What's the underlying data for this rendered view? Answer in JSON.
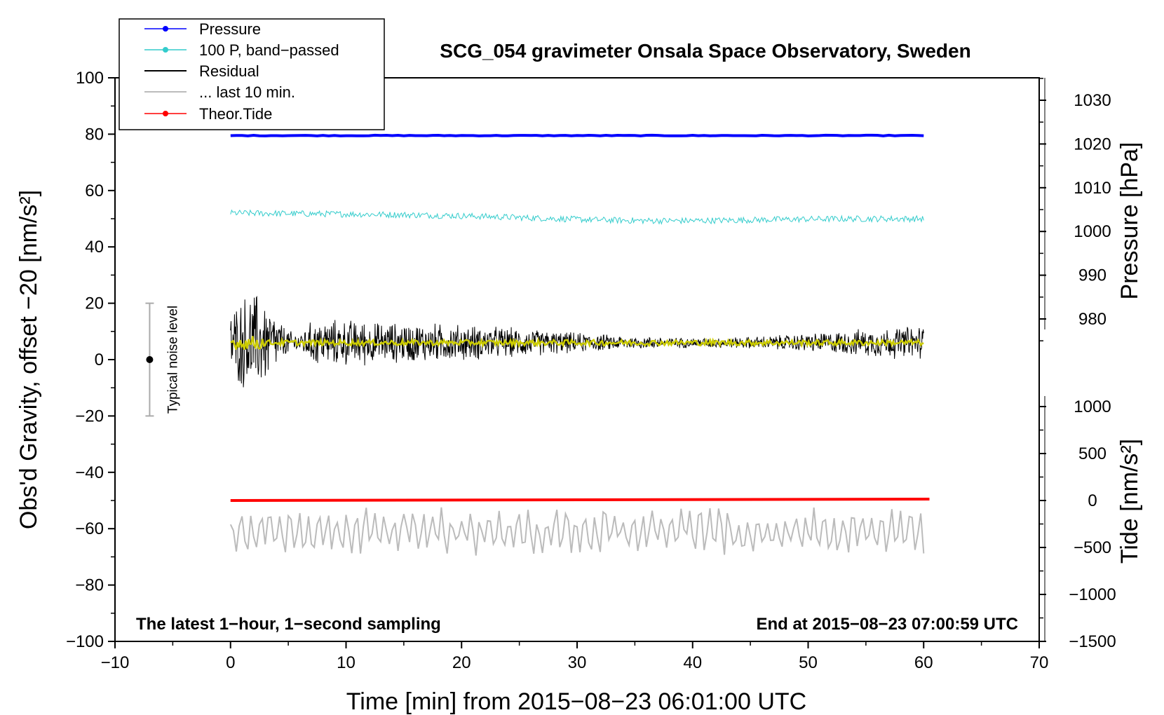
{
  "chart_data": {
    "type": "line",
    "title": "SCG_054 gravimeter Onsala Space Observatory, Sweden",
    "xlabel": "Time [min] from 2015−08−23 06:01:00 UTC",
    "ylabel_left": "Obs'd Gravity, offset −20 [nm/s²]",
    "ylabel_right_pressure": "Pressure [hPa]",
    "ylabel_right_tide": "Tide [nm/s²]",
    "xlim": [
      -10,
      70
    ],
    "ylim": [
      -100,
      100
    ],
    "x_ticks": [
      "−10",
      "0",
      "10",
      "20",
      "30",
      "40",
      "50",
      "60",
      "70"
    ],
    "y_ticks": [
      "−100",
      "−80",
      "−60",
      "−40",
      "−20",
      "0",
      "20",
      "40",
      "60",
      "80",
      "100"
    ],
    "pressure_ticks": [
      "980",
      "990",
      "1000",
      "1010",
      "1020",
      "1030"
    ],
    "tide_ticks": [
      "−1500",
      "−1000",
      "−500",
      "0",
      "500",
      "1000"
    ],
    "legend": [
      "Pressure",
      "100 P, band−passed",
      "Residual",
      "... last 10 min.",
      "Theor.Tide"
    ],
    "annotation_left": "The latest 1−hour, 1−second sampling",
    "annotation_right": "End at 2015−08−23 07:00:59 UTC",
    "noise_label": "Typical noise level",
    "noise_bar": {
      "x": -7,
      "center": 0,
      "low": -20,
      "high": 20
    },
    "series": [
      {
        "name": "Pressure",
        "color": "#0000ff",
        "x_range": [
          0,
          60
        ],
        "level_hpa": 1021.5,
        "y_plot": 79.5
      },
      {
        "name": "100 P, band−passed",
        "color": "#33cccc",
        "x_range": [
          0,
          60
        ],
        "y_start": 52,
        "y_end": 50,
        "y_dip": 48.5
      },
      {
        "name": "Residual",
        "color": "#000000",
        "x_range": [
          0,
          60
        ],
        "y_mean": 6,
        "amplitude_max": 20
      },
      {
        "name": "Residual smoothed",
        "color": "#cccc00",
        "x_range": [
          0,
          60
        ],
        "y_mean": 6
      },
      {
        "name": "... last 10 min.",
        "color": "#bbbbbb",
        "x_range": [
          0,
          60
        ],
        "y_mean": -61,
        "amplitude_max": 10
      },
      {
        "name": "Theor.Tide",
        "color": "#ff0000",
        "x_range": [
          0,
          60.5
        ],
        "y_start": -50,
        "y_end": -49.5
      }
    ]
  }
}
